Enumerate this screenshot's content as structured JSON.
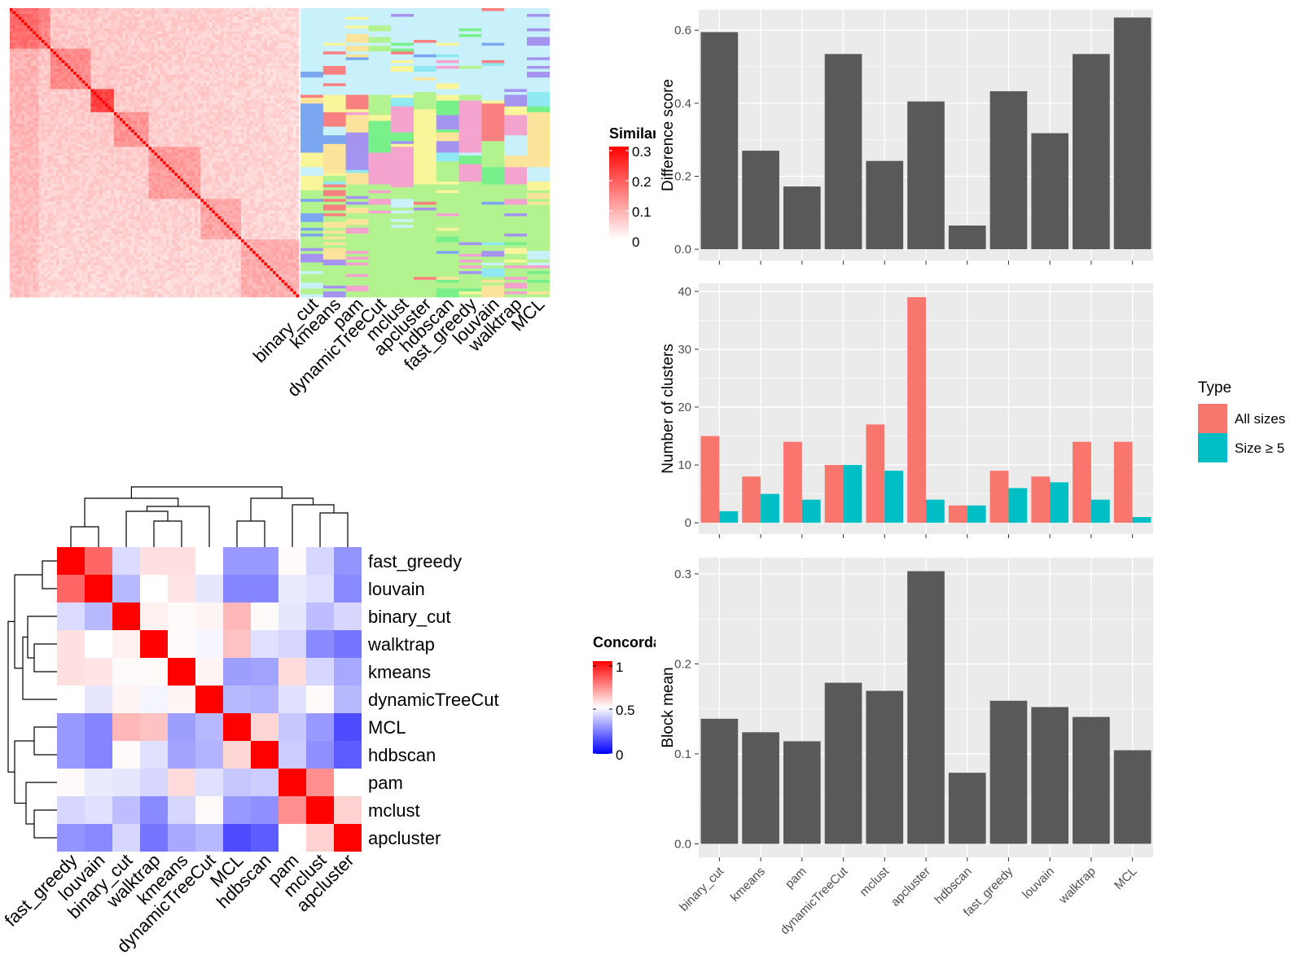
{
  "methods_bar_order": [
    "binary_cut",
    "kmeans",
    "pam",
    "dynamicTreeCut",
    "mclust",
    "apcluster",
    "hdbscan",
    "fast_greedy",
    "louvain",
    "walktrap",
    "MCL"
  ],
  "methods_hm_order": [
    "fast_greedy",
    "louvain",
    "binary_cut",
    "walktrap",
    "kmeans",
    "dynamicTreeCut",
    "MCL",
    "hdbscan",
    "pam",
    "mclust",
    "apcluster"
  ],
  "top_heatmap": {
    "columns": [
      "binary_cut",
      "kmeans",
      "pam",
      "dynamicTreeCut",
      "mclust",
      "apcluster",
      "hdbscan",
      "fast_greedy",
      "louvain",
      "walktrap",
      "MCL"
    ],
    "legend": {
      "title": "Similarity",
      "ticks": [
        "0.3",
        "0.2",
        "0.1",
        "0"
      ],
      "colors": [
        "#ffffff",
        "#ff0000"
      ]
    }
  },
  "concordance_legend": {
    "title": "Concordance",
    "ticks": [
      "1",
      "0.5",
      "0"
    ],
    "colors": [
      "#0000ff",
      "#ffffff",
      "#ff0000"
    ]
  },
  "type_legend": {
    "title": "Type",
    "items": [
      {
        "label": "All sizes",
        "color": "#F8766D"
      },
      {
        "label": "Size ≥ 5",
        "color": "#00BFC4"
      }
    ]
  },
  "chart_data": [
    {
      "type": "bar",
      "ylabel": "Difference score",
      "categories": [
        "binary_cut",
        "kmeans",
        "pam",
        "dynamicTreeCut",
        "mclust",
        "apcluster",
        "hdbscan",
        "fast_greedy",
        "louvain",
        "walktrap",
        "MCL"
      ],
      "values": [
        0.595,
        0.27,
        0.172,
        0.535,
        0.242,
        0.405,
        0.065,
        0.433,
        0.318,
        0.535,
        0.635
      ],
      "ylim": [
        0,
        0.65
      ],
      "yticks": [
        "0.0",
        "0.2",
        "0.4",
        "0.6"
      ],
      "color": "#595959"
    },
    {
      "type": "bar",
      "ylabel": "Number of clusters",
      "categories": [
        "binary_cut",
        "kmeans",
        "pam",
        "dynamicTreeCut",
        "mclust",
        "apcluster",
        "hdbscan",
        "fast_greedy",
        "louvain",
        "walktrap",
        "MCL"
      ],
      "series": [
        {
          "name": "All sizes",
          "values": [
            15,
            8,
            14,
            10,
            17,
            39,
            3,
            9,
            8,
            14,
            14
          ],
          "color": "#F8766D"
        },
        {
          "name": "Size ≥ 5",
          "values": [
            2,
            5,
            4,
            10,
            9,
            4,
            3,
            6,
            7,
            4,
            1
          ],
          "color": "#00BFC4"
        }
      ],
      "ylim": [
        0,
        41
      ],
      "yticks": [
        "0",
        "10",
        "20",
        "30",
        "40"
      ]
    },
    {
      "type": "bar",
      "ylabel": "Block mean",
      "categories": [
        "binary_cut",
        "kmeans",
        "pam",
        "dynamicTreeCut",
        "mclust",
        "apcluster",
        "hdbscan",
        "fast_greedy",
        "louvain",
        "walktrap",
        "MCL"
      ],
      "values": [
        0.139,
        0.124,
        0.114,
        0.179,
        0.17,
        0.303,
        0.079,
        0.159,
        0.152,
        0.141,
        0.104
      ],
      "ylim": [
        0,
        0.315
      ],
      "yticks": [
        "0.0",
        "0.1",
        "0.2",
        "0.3"
      ],
      "color": "#595959"
    },
    {
      "type": "heatmap",
      "title": "",
      "rows": [
        "fast_greedy",
        "louvain",
        "binary_cut",
        "walktrap",
        "kmeans",
        "dynamicTreeCut",
        "MCL",
        "hdbscan",
        "pam",
        "mclust",
        "apcluster"
      ],
      "columns": [
        "fast_greedy",
        "louvain",
        "binary_cut",
        "walktrap",
        "kmeans",
        "dynamicTreeCut",
        "MCL",
        "hdbscan",
        "pam",
        "mclust",
        "apcluster"
      ],
      "values": [
        [
          1.0,
          0.8,
          0.43,
          0.56,
          0.56,
          0.5,
          0.3,
          0.3,
          0.51,
          0.42,
          0.29
        ],
        [
          0.8,
          1.0,
          0.36,
          0.5,
          0.55,
          0.45,
          0.26,
          0.26,
          0.46,
          0.44,
          0.27
        ],
        [
          0.43,
          0.36,
          1.0,
          0.53,
          0.51,
          0.52,
          0.64,
          0.51,
          0.45,
          0.37,
          0.42
        ],
        [
          0.56,
          0.5,
          0.53,
          1.0,
          0.51,
          0.48,
          0.62,
          0.44,
          0.42,
          0.27,
          0.23
        ],
        [
          0.56,
          0.55,
          0.51,
          0.51,
          1.0,
          0.52,
          0.31,
          0.32,
          0.57,
          0.42,
          0.33
        ],
        [
          0.5,
          0.45,
          0.52,
          0.48,
          0.52,
          1.0,
          0.36,
          0.35,
          0.44,
          0.51,
          0.36
        ],
        [
          0.3,
          0.26,
          0.64,
          0.62,
          0.31,
          0.36,
          1.0,
          0.58,
          0.39,
          0.3,
          0.15
        ],
        [
          0.3,
          0.26,
          0.51,
          0.44,
          0.32,
          0.35,
          0.58,
          1.0,
          0.4,
          0.28,
          0.18
        ],
        [
          0.51,
          0.46,
          0.45,
          0.42,
          0.57,
          0.44,
          0.39,
          0.4,
          1.0,
          0.72,
          0.5
        ],
        [
          0.42,
          0.44,
          0.37,
          0.27,
          0.42,
          0.51,
          0.3,
          0.28,
          0.72,
          1.0,
          0.59
        ],
        [
          0.29,
          0.27,
          0.42,
          0.23,
          0.33,
          0.36,
          0.15,
          0.18,
          0.5,
          0.59,
          1.0
        ]
      ]
    }
  ]
}
